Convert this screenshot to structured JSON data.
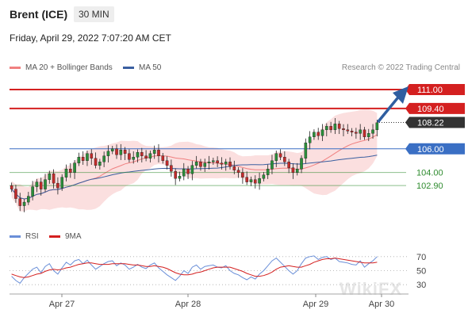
{
  "header": {
    "title": "Brent (ICE)",
    "timeframe": "30 MIN",
    "datetime": "Friday, April 29, 2022 7:07:20 AM CET"
  },
  "legend": {
    "ma20": "MA 20 + Bollinger Bands",
    "ma50": "MA 50",
    "credit": "Research © 2022 Trading Central"
  },
  "colors": {
    "resistance": "#d42020",
    "current": "#333333",
    "pivot": "#3a6fc4",
    "support": "#2e8b2e",
    "candle_up": "#2a8f3a",
    "candle_down": "#c42b2b",
    "ma20": "#f08080",
    "ma50": "#3a5fa0",
    "bollinger": "#fbdcdc",
    "rsi": "#6a8fd8",
    "rsi_ma": "#d42020"
  },
  "rsi_legend": {
    "rsi": "RSI",
    "ma": "9MA"
  },
  "watermark": "WikiFX",
  "chart_data": {
    "type": "candlestick",
    "x_labels": [
      "Apr 27",
      "Apr 28",
      "Apr 29",
      "Apr 30"
    ],
    "ylim": [
      99.5,
      112.2
    ],
    "levels": [
      {
        "value": 111.0,
        "label": "111.00",
        "kind": "resistance"
      },
      {
        "value": 109.4,
        "label": "109.40",
        "kind": "resistance"
      },
      {
        "value": 108.22,
        "label": "108.22",
        "kind": "current"
      },
      {
        "value": 106.0,
        "label": "106.00",
        "kind": "pivot"
      },
      {
        "value": 104.0,
        "label": "104.00",
        "kind": "support"
      },
      {
        "value": 102.9,
        "label": "102.90",
        "kind": "support"
      }
    ],
    "close": [
      102.6,
      101.8,
      101.2,
      101.5,
      102.0,
      102.8,
      103.2,
      102.6,
      103.4,
      103.9,
      103.1,
      102.7,
      103.6,
      104.3,
      104.0,
      104.8,
      105.3,
      105.0,
      105.6,
      105.2,
      104.6,
      104.9,
      105.4,
      105.8,
      106.0,
      105.5,
      105.9,
      105.6,
      105.1,
      105.3,
      105.7,
      105.4,
      105.2,
      105.6,
      105.9,
      105.4,
      105.0,
      104.6,
      104.1,
      103.5,
      103.7,
      104.3,
      103.9,
      104.6,
      104.9,
      104.5,
      104.8,
      104.9,
      105.0,
      104.8,
      104.7,
      104.9,
      104.5,
      104.2,
      104.0,
      103.6,
      103.2,
      103.4,
      103.1,
      103.5,
      103.8,
      104.3,
      105.0,
      105.6,
      105.3,
      104.9,
      104.4,
      104.0,
      104.3,
      105.2,
      106.5,
      107.0,
      107.4,
      107.1,
      107.6,
      107.9,
      107.6,
      108.1,
      107.7,
      107.6,
      107.5,
      107.4,
      107.3,
      107.6,
      107.0,
      107.3,
      107.6,
      108.2
    ],
    "rsi": {
      "levels": [
        70,
        50,
        30
      ],
      "rsi": [
        42,
        36,
        32,
        40,
        46,
        52,
        55,
        47,
        56,
        60,
        50,
        45,
        54,
        62,
        58,
        64,
        66,
        60,
        65,
        58,
        52,
        56,
        60,
        63,
        64,
        57,
        61,
        58,
        52,
        55,
        59,
        55,
        53,
        58,
        61,
        54,
        49,
        44,
        40,
        36,
        42,
        50,
        46,
        55,
        58,
        52,
        56,
        57,
        58,
        55,
        54,
        57,
        50,
        46,
        44,
        40,
        37,
        41,
        38,
        45,
        50,
        57,
        64,
        68,
        62,
        56,
        50,
        45,
        50,
        60,
        68,
        70,
        71,
        66,
        69,
        70,
        66,
        68,
        63,
        62,
        61,
        59,
        58,
        64,
        55,
        60,
        64,
        70
      ],
      "ma": [
        45,
        43,
        41,
        40,
        41,
        43,
        45,
        46,
        49,
        51,
        52,
        51,
        52,
        54,
        55,
        57,
        59,
        60,
        61,
        61,
        60,
        59,
        59,
        59,
        60,
        60,
        60,
        60,
        59,
        58,
        58,
        57,
        56,
        56,
        57,
        56,
        55,
        53,
        50,
        47,
        45,
        44,
        44,
        45,
        47,
        48,
        50,
        52,
        54,
        55,
        55,
        55,
        55,
        53,
        51,
        49,
        46,
        44,
        42,
        42,
        43,
        45,
        48,
        52,
        55,
        56,
        57,
        56,
        55,
        55,
        57,
        59,
        62,
        64,
        66,
        67,
        67,
        68,
        67,
        66,
        65,
        64,
        63,
        62,
        61,
        61,
        61,
        62
      ]
    }
  }
}
